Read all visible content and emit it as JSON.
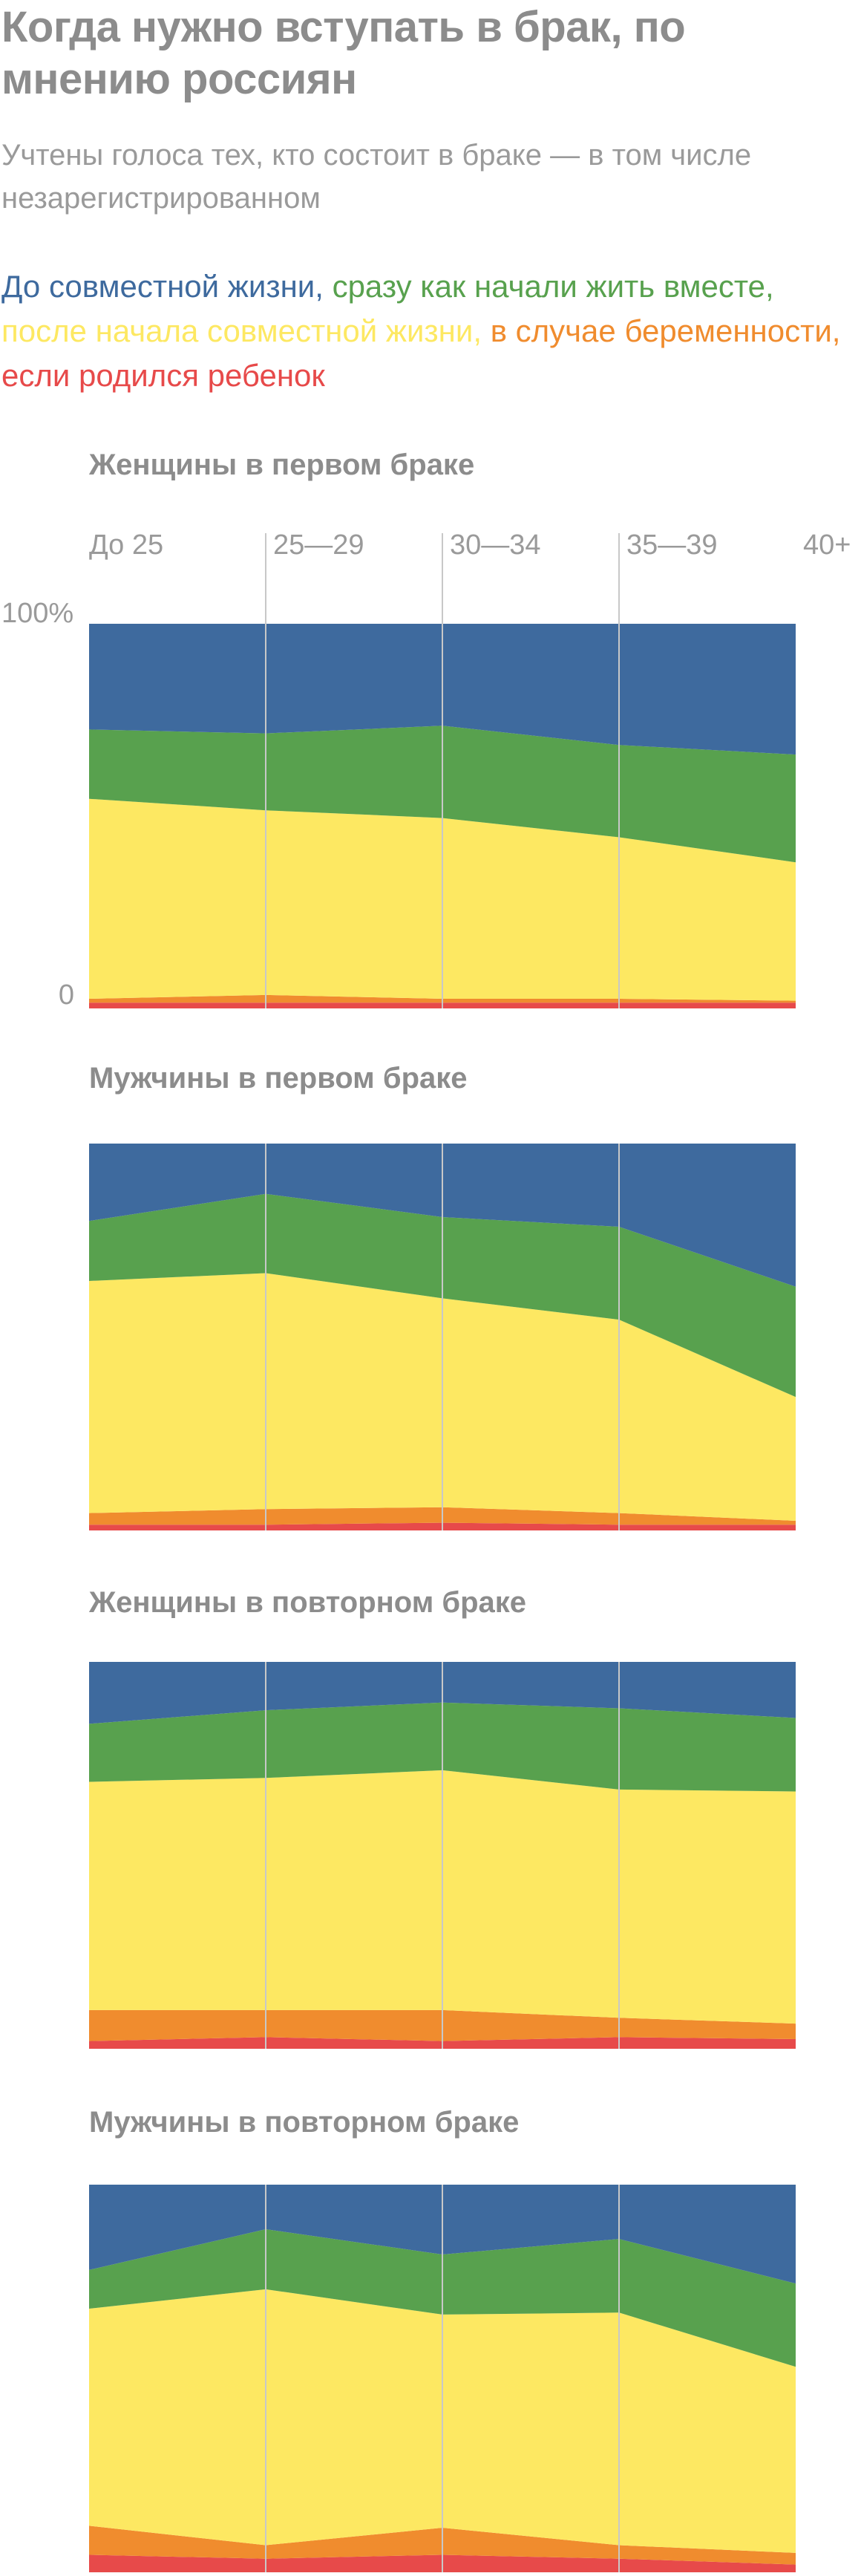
{
  "title": "Когда нужно вступать в брак, по мнению россиян",
  "subtitle": "Учтены голоса тех, кто состоит в браке — в том числе незарегистрированном",
  "colors": {
    "before": "#3e6a9e",
    "immediately": "#58a14e",
    "after": "#fde862",
    "pregnancy": "#f08c2e",
    "child": "#e74a4a",
    "axis_text": "#9a9a9a",
    "gridline": "#c8c8c8"
  },
  "legend": [
    {
      "label": "До совместной жизни,",
      "series": "before"
    },
    {
      "label": "сразу как начали жить вместе,",
      "series": "immediately"
    },
    {
      "label": "после начала совместной жизни,",
      "series": "after"
    },
    {
      "label": "в случае беременности,",
      "series": "pregnancy"
    },
    {
      "label": "если родился ребенок",
      "series": "child"
    }
  ],
  "chart_data": [
    {
      "type": "area",
      "title": "Женщины в первом браке",
      "categories": [
        "До 25",
        "25—29",
        "30—34",
        "35—39",
        "40+"
      ],
      "show_category_labels": true,
      "show_y_tick_labels": true,
      "y_tick_labels": [
        "100%",
        "0"
      ],
      "ylim": [
        0,
        100
      ],
      "stacked": true,
      "series": [
        {
          "key": "child",
          "values": [
            1.5,
            1.5,
            1.5,
            1.5,
            1.5
          ]
        },
        {
          "key": "pregnancy",
          "values": [
            1,
            2,
            1,
            1,
            0.5
          ]
        },
        {
          "key": "after",
          "values": [
            52,
            48,
            47,
            42,
            36
          ]
        },
        {
          "key": "immediately",
          "values": [
            18,
            20,
            24,
            24,
            28
          ]
        },
        {
          "key": "before",
          "values": [
            27.5,
            28.5,
            26.5,
            31.5,
            34
          ]
        }
      ]
    },
    {
      "type": "area",
      "title": "Мужчины в первом браке",
      "categories": [
        "До 25",
        "25—29",
        "30—34",
        "35—39",
        "40+"
      ],
      "show_category_labels": false,
      "show_y_tick_labels": false,
      "ylim": [
        0,
        100
      ],
      "stacked": true,
      "series": [
        {
          "key": "child",
          "values": [
            1.5,
            1.5,
            2,
            1.5,
            1.5
          ]
        },
        {
          "key": "pregnancy",
          "values": [
            3,
            4,
            4,
            3,
            1
          ]
        },
        {
          "key": "after",
          "values": [
            60,
            61,
            54,
            50,
            32
          ]
        },
        {
          "key": "immediately",
          "values": [
            15.5,
            20.5,
            21,
            24,
            28.5
          ]
        },
        {
          "key": "before",
          "values": [
            20,
            13,
            19,
            21.5,
            37
          ]
        }
      ]
    },
    {
      "type": "area",
      "title": "Женщины в повторном браке",
      "categories": [
        "До 25",
        "25—29",
        "30—34",
        "35—39",
        "40+"
      ],
      "show_category_labels": false,
      "show_y_tick_labels": false,
      "ylim": [
        0,
        100
      ],
      "stacked": true,
      "series": [
        {
          "key": "child",
          "values": [
            2,
            3,
            2,
            3,
            2.5
          ]
        },
        {
          "key": "pregnancy",
          "values": [
            8,
            7,
            8,
            5,
            4
          ]
        },
        {
          "key": "after",
          "values": [
            59,
            60,
            62,
            59,
            60
          ]
        },
        {
          "key": "immediately",
          "values": [
            15,
            17.5,
            17.5,
            21,
            19
          ]
        },
        {
          "key": "before",
          "values": [
            16,
            12.5,
            10.5,
            12,
            14.5
          ]
        }
      ]
    },
    {
      "type": "area",
      "title": "Мужчины в повторном браке",
      "categories": [
        "До 25",
        "25—29",
        "30—34",
        "35—39",
        "40+"
      ],
      "show_category_labels": false,
      "show_y_tick_labels": false,
      "ylim": [
        0,
        100
      ],
      "stacked": true,
      "series": [
        {
          "key": "child",
          "values": [
            4.5,
            3.5,
            4.5,
            3.5,
            2
          ]
        },
        {
          "key": "pregnancy",
          "values": [
            7.5,
            3.5,
            7,
            3.5,
            3
          ]
        },
        {
          "key": "after",
          "values": [
            56,
            66,
            55,
            60,
            48
          ]
        },
        {
          "key": "immediately",
          "values": [
            10,
            15.5,
            15.5,
            19,
            21.5
          ]
        },
        {
          "key": "before",
          "values": [
            22,
            11.5,
            18,
            14,
            25.5
          ]
        }
      ]
    }
  ]
}
